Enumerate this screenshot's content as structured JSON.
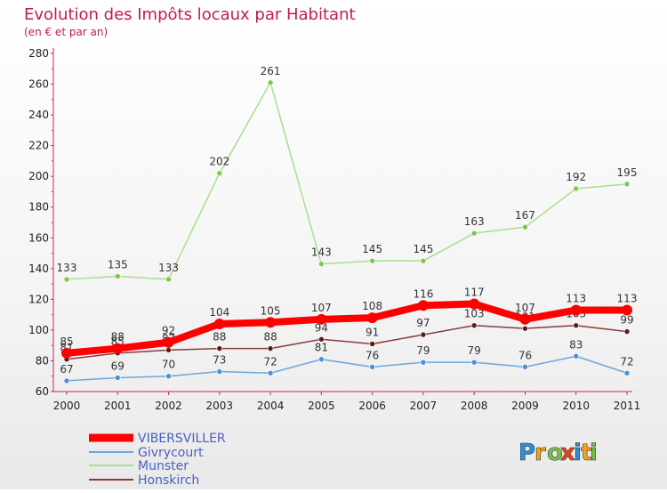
{
  "chart_data": {
    "type": "line",
    "title": "Evolution des Impôts locaux par Habitant",
    "subtitle": "(en € et par an)",
    "x": [
      "2000",
      "2001",
      "2002",
      "2003",
      "2004",
      "2005",
      "2006",
      "2007",
      "2008",
      "2009",
      "2010",
      "2011"
    ],
    "ylim": [
      60,
      280
    ],
    "yticks": [
      60,
      80,
      100,
      120,
      140,
      160,
      180,
      200,
      220,
      240,
      260,
      280
    ],
    "grid": false,
    "legend_position": "bottom-left",
    "series": [
      {
        "name": "VIBERSVILLER",
        "color": "#ff0000",
        "point_color": "#ff0000",
        "emphasis": true,
        "values": [
          85,
          88,
          92,
          104,
          105,
          107,
          108,
          116,
          117,
          107,
          113,
          113
        ]
      },
      {
        "name": "Givrycourt",
        "color": "#6aa7de",
        "point_color": "#4b8fd6",
        "emphasis": false,
        "values": [
          67,
          69,
          70,
          73,
          72,
          81,
          76,
          79,
          79,
          76,
          83,
          72
        ]
      },
      {
        "name": "Munster",
        "color": "#a6e08c",
        "point_color": "#7cc84e",
        "emphasis": false,
        "values": [
          133,
          135,
          133,
          202,
          261,
          143,
          145,
          145,
          163,
          167,
          192,
          195
        ]
      },
      {
        "name": "Honskirch",
        "color": "#8b3a3a",
        "point_color": "#5a1a1a",
        "emphasis": false,
        "values": [
          81,
          85,
          87,
          88,
          88,
          94,
          91,
          97,
          103,
          101,
          103,
          99
        ]
      }
    ]
  },
  "branding": {
    "logo_text": "Proxiti",
    "letter_colors": [
      "#2e8fd6",
      "#f0a21a",
      "#7ac143",
      "#e8451e",
      "#2e8fd6",
      "#f0a21a",
      "#7ac143"
    ]
  },
  "colors": {
    "title": "#c2185b",
    "axis": "#cc2266",
    "tick_text": "#222222",
    "label_text": "#333333"
  }
}
